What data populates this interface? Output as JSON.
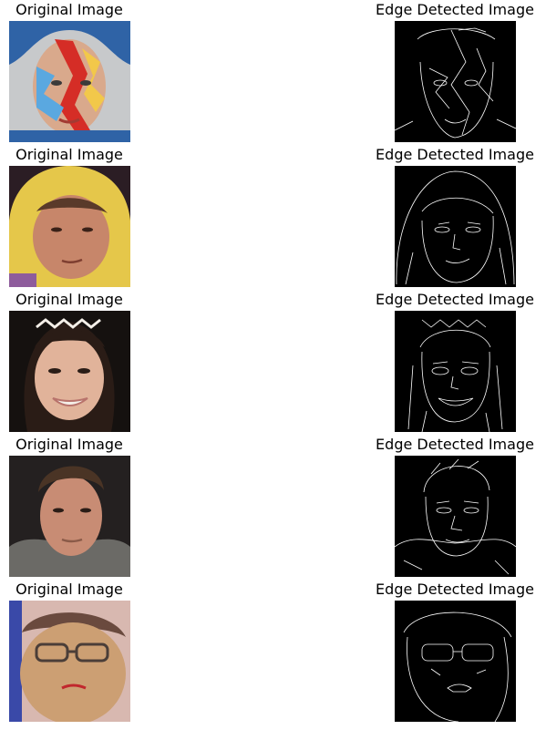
{
  "figure": {
    "rows": [
      {
        "left_title": "Original Image",
        "right_title": "Edge Detected Image",
        "photo_colors": {
          "bg": "#2f63a6",
          "skin": "#d9a98c",
          "accent1": "#d52d26",
          "accent2": "#f2c84a",
          "accent3": "#5aa8e0"
        }
      },
      {
        "left_title": "Original Image",
        "right_title": "Edge Detected Image",
        "photo_colors": {
          "bg": "#2b1d24",
          "skin": "#c7866a",
          "accent1": "#e5c74a",
          "accent2": "#8e5c9c",
          "accent3": "#5a3a2a"
        }
      },
      {
        "left_title": "Original Image",
        "right_title": "Edge Detected Image",
        "photo_colors": {
          "bg": "#15110f",
          "skin": "#e1b39a",
          "accent1": "#2a1c16",
          "accent2": "#f4efe8",
          "accent3": "#b8736c"
        }
      },
      {
        "left_title": "Original Image",
        "right_title": "Edge Detected Image",
        "photo_colors": {
          "bg": "#242020",
          "skin": "#c88c74",
          "accent1": "#4a3425",
          "accent2": "#6b6a66",
          "accent3": "#8a5a48"
        }
      },
      {
        "left_title": "Original Image",
        "right_title": "Edge Detected Image",
        "photo_colors": {
          "bg": "#d8b8b0",
          "skin": "#cc9f73",
          "accent1": "#4b3e38",
          "accent2": "#c1272d",
          "accent3": "#6a4a3e"
        }
      }
    ]
  }
}
